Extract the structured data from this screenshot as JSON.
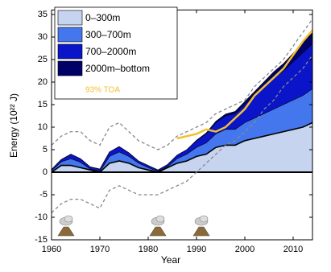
{
  "chart_data": {
    "type": "stacked_area",
    "xlabel": "Year",
    "ylabel": "Energy (10²² J)",
    "x": [
      1960,
      1962,
      1964,
      1966,
      1968,
      1970,
      1972,
      1974,
      1976,
      1978,
      1980,
      1982,
      1984,
      1986,
      1988,
      1990,
      1992,
      1994,
      1996,
      1998,
      2000,
      2002,
      2004,
      2006,
      2008,
      2010,
      2012,
      2014
    ],
    "series": [
      {
        "name": "0–300m",
        "color": "#c6d4f0",
        "values": [
          0,
          1.5,
          1.5,
          1.0,
          0.5,
          0,
          2.0,
          2.5,
          2.0,
          1.0,
          0.5,
          0,
          1.0,
          2.0,
          2.5,
          3.5,
          4,
          5.5,
          6,
          6,
          7,
          7.5,
          8,
          8.5,
          9,
          9.5,
          10,
          11
        ]
      },
      {
        "name": "300–700m",
        "color": "#4477ee",
        "values": [
          0.3,
          0.8,
          1.5,
          1.2,
          0.2,
          0.2,
          1.5,
          2.0,
          1.5,
          1.0,
          0.5,
          0.2,
          0.2,
          1.0,
          1.5,
          2,
          2.5,
          3,
          3.5,
          3.5,
          4,
          4.5,
          5,
          5.5,
          6,
          6.5,
          7,
          7.5
        ]
      },
      {
        "name": "700–2000m",
        "color": "#0a14c8",
        "values": [
          0.3,
          0.5,
          1.0,
          0.8,
          0.5,
          0.5,
          1.0,
          1.2,
          0.8,
          0.5,
          0.5,
          0.3,
          0.5,
          0.8,
          1.0,
          1.5,
          2,
          2.5,
          3,
          3.5,
          4,
          5,
          6,
          7,
          7.5,
          8.5,
          9.5,
          10
        ]
      },
      {
        "name": "2000m–bottom",
        "color": "#000066",
        "values": [
          0,
          0,
          0,
          0,
          0,
          0,
          0,
          0,
          0,
          0,
          0,
          0,
          0,
          0,
          0,
          0.1,
          0.2,
          0.3,
          0.4,
          0.5,
          0.7,
          0.9,
          1.1,
          1.3,
          1.6,
          1.9,
          2.2,
          2.5
        ]
      }
    ],
    "uncertainty": {
      "color": "#888888",
      "upper": [
        6,
        8,
        9,
        9,
        7,
        6,
        10,
        11,
        9,
        7,
        6,
        5,
        6,
        8,
        9,
        10,
        11,
        13,
        14,
        15,
        16,
        19,
        21,
        23,
        25,
        28,
        31,
        34
      ],
      "lower": [
        -9,
        -7,
        -6,
        -6,
        -7,
        -8,
        -4,
        -3,
        -4,
        -5,
        -5,
        -5,
        -4,
        -3,
        -2,
        0,
        2,
        4,
        6,
        7,
        9,
        11,
        14,
        16,
        19,
        21,
        23,
        26
      ]
    },
    "toa": {
      "name": "93% TOA",
      "color": "#f0c030",
      "x": [
        1986,
        1988,
        1990,
        1992,
        1994,
        1996,
        1998,
        2000,
        2002,
        2004,
        2006,
        2008,
        2010,
        2012,
        2014
      ],
      "values": [
        7.5,
        8,
        8.5,
        9.5,
        9,
        10,
        12,
        14,
        17,
        19,
        21,
        23,
        26,
        29,
        31.5
      ]
    },
    "eruptions": [
      1963,
      1982,
      1991
    ],
    "xlim": [
      1960,
      2014
    ],
    "xticks": [
      1960,
      1970,
      1980,
      1990,
      2000,
      2010
    ],
    "ylim": [
      -15,
      36
    ],
    "yticks": [
      -15,
      -10,
      -5,
      0,
      5,
      10,
      15,
      20,
      25,
      30,
      35
    ]
  }
}
